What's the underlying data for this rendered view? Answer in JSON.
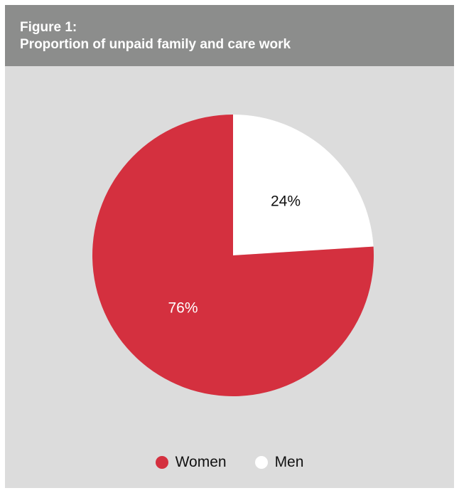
{
  "header": {
    "figure_label": "Figure 1:",
    "title": "Proportion of unpaid family and care work"
  },
  "colors": {
    "header_background": "#8c8d8c",
    "panel_background": "#dcdcdc",
    "women": "#d4303f",
    "men": "#ffffff"
  },
  "chart_data": {
    "type": "pie",
    "title": "Proportion of unpaid family and care work",
    "slices": [
      {
        "name": "Men",
        "value": 24,
        "label": "24%",
        "color": "#ffffff",
        "label_color": "#111111"
      },
      {
        "name": "Women",
        "value": 76,
        "label": "76%",
        "color": "#d4303f",
        "label_color": "#ffffff"
      }
    ],
    "start": "12 o'clock",
    "direction": "clockwise",
    "legend": {
      "placement": "bottom-center",
      "entries": [
        {
          "name": "Women",
          "color": "#d4303f"
        },
        {
          "name": "Men",
          "color": "#ffffff"
        }
      ]
    }
  }
}
